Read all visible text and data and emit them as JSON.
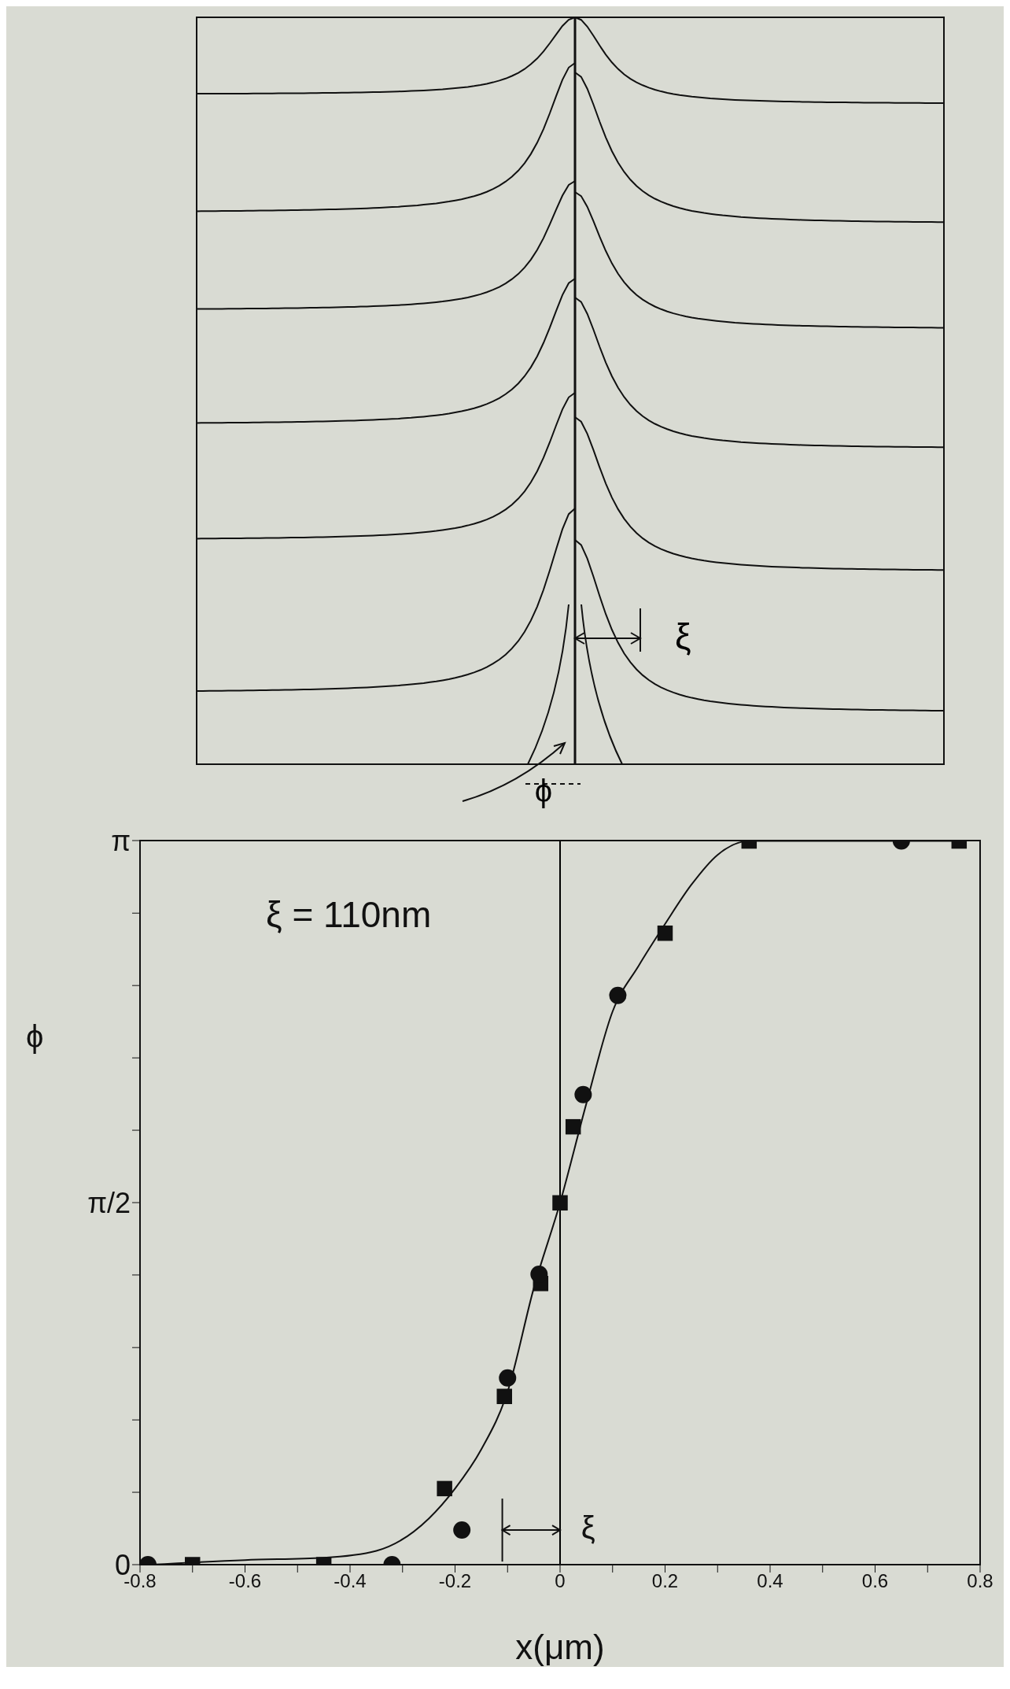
{
  "chart_data": [
    {
      "type": "other",
      "annotations": [
        "ξ",
        "ϕ"
      ]
    },
    {
      "type": "scatter",
      "xlabel": "x(μm)",
      "ylabel": "ϕ",
      "xlim": [
        -0.8,
        0.8
      ],
      "xticks": [
        -0.8,
        {
          "value": -0.7,
          "label": null
        },
        -0.6,
        {
          "value": -0.5,
          "label": null
        },
        -0.4,
        {
          "value": -0.3,
          "label": null
        },
        -0.2,
        {
          "value": -0.1,
          "label": null
        },
        0,
        {
          "value": 0.1,
          "label": null
        },
        0.2,
        {
          "value": 0.3,
          "label": null
        },
        0.4,
        {
          "value": 0.5,
          "label": null
        },
        0.6,
        {
          "value": 0.7,
          "label": null
        },
        0.8
      ],
      "ylim": [
        0,
        3.142
      ],
      "yticks": [
        0,
        {
          "value": 0.314,
          "label": null
        },
        {
          "value": 0.628,
          "label": null
        },
        {
          "value": 0.942,
          "label": null
        },
        {
          "value": 1.257,
          "label": null
        },
        {
          "value": 1.571,
          "label": "π/2"
        },
        {
          "value": 1.885,
          "label": null
        },
        {
          "value": 2.199,
          "label": null
        },
        {
          "value": 2.513,
          "label": null
        },
        {
          "value": 2.827,
          "label": null
        },
        {
          "value": 3.142,
          "label": "π"
        }
      ],
      "ref_lines": [
        {
          "axis": "x",
          "value": 0,
          "color": "#000000"
        }
      ],
      "annotations": [
        "ξ = 110nm",
        "ξ"
      ],
      "series": [
        {
          "type": "line",
          "marker": "none",
          "color": "#111111",
          "x": [
            -0.78,
            -0.6,
            -0.45,
            -0.35,
            -0.25,
            -0.2,
            -0.15,
            -0.1,
            -0.05,
            0,
            0.05,
            0.1,
            0.15,
            0.2,
            0.25,
            0.3,
            0.36,
            0.5,
            0.65,
            0.76
          ],
          "values": [
            0,
            0.02,
            0.03,
            0.06,
            0.2,
            0.33,
            0.5,
            0.75,
            1.2,
            1.57,
            2.0,
            2.4,
            2.6,
            2.78,
            2.95,
            3.08,
            3.14,
            3.14,
            3.14,
            3.14
          ]
        },
        {
          "type": "scatter",
          "marker": "square",
          "color": "#111111",
          "x": [
            -0.7,
            -0.45,
            -0.22,
            -0.106,
            -0.037,
            0,
            0.025,
            0.2,
            0.36,
            0.76
          ],
          "values": [
            0,
            0,
            0.33,
            0.73,
            1.22,
            1.57,
            1.9,
            2.74,
            3.14,
            3.14
          ]
        },
        {
          "type": "scatter",
          "marker": "circle",
          "color": "#111111",
          "x": [
            -0.785,
            -0.32,
            -0.187,
            -0.1,
            -0.04,
            0,
            0.044,
            0.11,
            0.2,
            0.65
          ],
          "values": [
            0,
            0,
            0.15,
            0.81,
            1.26,
            null,
            2.04,
            2.47,
            null,
            3.14
          ]
        }
      ]
    }
  ]
}
